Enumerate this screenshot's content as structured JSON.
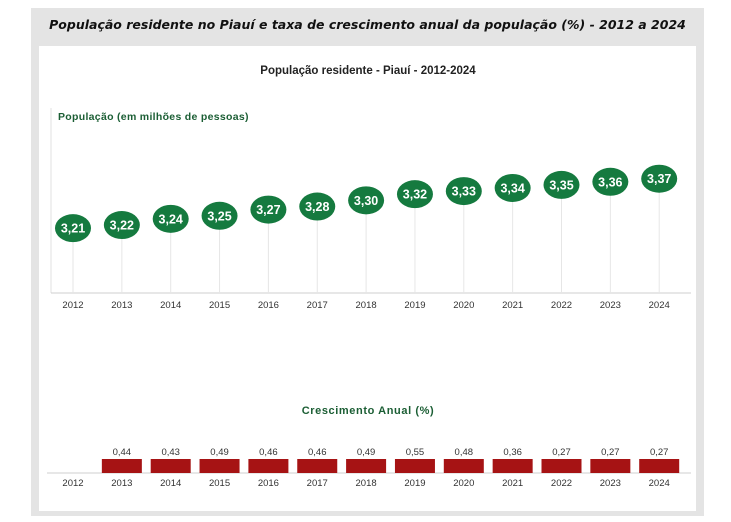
{
  "page": {
    "title": "População residente no Piauí e taxa de crescimento anual da população (%) - 2012 a 2024"
  },
  "colors": {
    "population": "#157a3f",
    "growth": "#a61314",
    "subtitle": "#1b5e34"
  },
  "chart_data": [
    {
      "type": "scatter",
      "title": "População residente - Piauí - 2012-2024",
      "ylabel": "População (em milhões de pessoas)",
      "categories": [
        "2012",
        "2013",
        "2014",
        "2015",
        "2016",
        "2017",
        "2018",
        "2019",
        "2020",
        "2021",
        "2022",
        "2023",
        "2024"
      ],
      "values": [
        3.21,
        3.22,
        3.24,
        3.25,
        3.27,
        3.28,
        3.3,
        3.32,
        3.33,
        3.34,
        3.35,
        3.36,
        3.37
      ],
      "labels": [
        "3,21",
        "3,22",
        "3,24",
        "3,25",
        "3,27",
        "3,28",
        "3,30",
        "3,32",
        "3,33",
        "3,34",
        "3,35",
        "3,36",
        "3,37"
      ],
      "ylim": [
        3.0,
        3.45
      ],
      "grid": false,
      "legend": "none"
    },
    {
      "type": "bar",
      "title": "Crescimento Anual (%)",
      "categories": [
        "2012",
        "2013",
        "2014",
        "2015",
        "2016",
        "2017",
        "2018",
        "2019",
        "2020",
        "2021",
        "2022",
        "2023",
        "2024"
      ],
      "values": [
        null,
        0.44,
        0.43,
        0.49,
        0.46,
        0.46,
        0.49,
        0.55,
        0.48,
        0.36,
        0.27,
        0.27,
        0.27
      ],
      "labels": [
        "",
        "0,44",
        "0,43",
        "0,49",
        "0,46",
        "0,46",
        "0,49",
        "0,55",
        "0,48",
        "0,36",
        "0,27",
        "0,27",
        "0,27"
      ],
      "grid": false,
      "legend": "none"
    }
  ]
}
